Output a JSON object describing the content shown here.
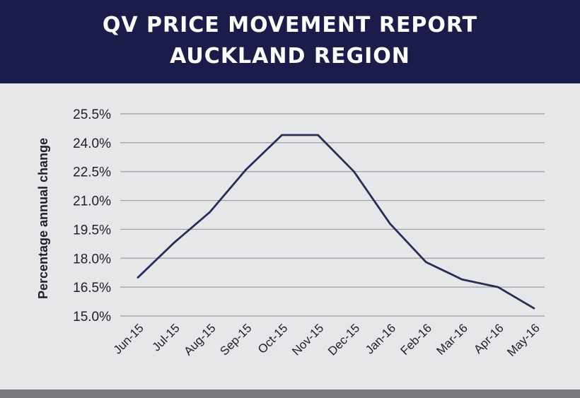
{
  "header": {
    "title_line1": "QV PRICE MOVEMENT REPORT",
    "title_line2": "AUCKLAND REGION",
    "background": "#1c1c4a"
  },
  "chart_data": {
    "type": "line",
    "title": "QV PRICE MOVEMENT REPORT AUCKLAND REGION",
    "xlabel": "",
    "ylabel": "Percentage annual change",
    "categories": [
      "Jun-15",
      "Jul-15",
      "Aug-15",
      "Sep-15",
      "Oct-15",
      "Nov-15",
      "Dec-15",
      "Jan-16",
      "Feb-16",
      "Mar-16",
      "Apr-16",
      "May-16"
    ],
    "series": [
      {
        "values": [
          17.0,
          18.8,
          20.4,
          22.6,
          24.4,
          24.4,
          22.5,
          19.8,
          17.8,
          16.9,
          16.5,
          15.4
        ],
        "color": "#2b2b55"
      }
    ],
    "ylim": [
      15.0,
      25.5
    ],
    "yticks": [
      "15.0%",
      "16.5%",
      "18.0%",
      "19.5%",
      "21.0%",
      "22.5%",
      "24.0%",
      "25.5%"
    ],
    "ytick_values": [
      15.0,
      16.5,
      18.0,
      19.5,
      21.0,
      22.5,
      24.0,
      25.5
    ],
    "grid": true,
    "legend": "none"
  },
  "footer": {
    "color": "#77797e"
  }
}
